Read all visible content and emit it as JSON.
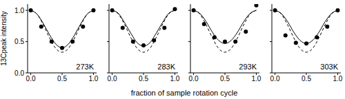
{
  "x_label": "fraction of sample rotation cycle",
  "y_label": "13Cpeak intensity",
  "chart_data": [
    {
      "type": "line",
      "title": "273K",
      "xlim": [
        -0.05,
        1.05
      ],
      "ylim": [
        0,
        1.1
      ],
      "xticks": [
        {
          "value": 0,
          "label": "0.0"
        },
        {
          "value": 0.5,
          "label": "0.5"
        },
        {
          "value": 1,
          "label": "1.0"
        }
      ],
      "yticks": [
        {
          "value": 0,
          "label": "0.0"
        },
        {
          "value": 0.5,
          "label": "0.5"
        },
        {
          "value": 1,
          "label": "1.0"
        }
      ],
      "series": [
        {
          "type": "scatter",
          "marker": "circle",
          "color": "#000000",
          "x": [
            0,
            0.167,
            0.333,
            0.5,
            0.667,
            0.833,
            1
          ],
          "values": [
            1.0,
            0.74,
            0.5,
            0.4,
            0.5,
            0.74,
            1.0
          ]
        },
        {
          "type": "line",
          "line_style": "solid",
          "color": "#000000",
          "x": [
            0,
            0.1,
            0.2,
            0.3,
            0.4,
            0.5,
            0.6,
            0.7,
            0.8,
            0.9,
            1
          ],
          "values": [
            1,
            0.94,
            0.79,
            0.61,
            0.46,
            0.4,
            0.46,
            0.61,
            0.79,
            0.94,
            1
          ]
        },
        {
          "type": "line",
          "line_style": "dashed",
          "color": "#000000",
          "x": [
            0,
            0.1,
            0.2,
            0.3,
            0.4,
            0.5,
            0.6,
            0.7,
            0.8,
            0.9,
            1
          ],
          "values": [
            1,
            0.94,
            0.77,
            0.56,
            0.39,
            0.33,
            0.39,
            0.56,
            0.77,
            0.94,
            1
          ]
        }
      ]
    },
    {
      "type": "line",
      "title": "283K",
      "xlim": [
        -0.05,
        1.05
      ],
      "ylim": [
        0,
        1.1
      ],
      "tick_labels": "x",
      "xticks": [
        {
          "value": 0,
          "label": "0.0"
        },
        {
          "value": 0.5,
          "label": "0.5"
        },
        {
          "value": 1,
          "label": "1.0"
        }
      ],
      "yticks": [
        0,
        0.5,
        1
      ],
      "series": [
        {
          "type": "scatter",
          "marker": "circle",
          "color": "#000000",
          "x": [
            0,
            0.167,
            0.333,
            0.5,
            0.667,
            0.833,
            1
          ],
          "values": [
            1.0,
            0.72,
            0.5,
            0.44,
            0.52,
            0.72,
            1.02
          ]
        },
        {
          "type": "line",
          "line_style": "solid",
          "color": "#000000",
          "x": [
            0,
            0.1,
            0.2,
            0.3,
            0.4,
            0.5,
            0.6,
            0.7,
            0.8,
            0.9,
            1
          ],
          "values": [
            1,
            0.95,
            0.8,
            0.63,
            0.48,
            0.43,
            0.48,
            0.63,
            0.8,
            0.95,
            1
          ]
        },
        {
          "type": "line",
          "line_style": "dashed",
          "color": "#000000",
          "x": [
            0,
            0.1,
            0.2,
            0.3,
            0.4,
            0.5,
            0.6,
            0.7,
            0.8,
            0.9,
            1
          ],
          "values": [
            1,
            0.94,
            0.77,
            0.56,
            0.39,
            0.33,
            0.39,
            0.56,
            0.77,
            0.94,
            1
          ]
        }
      ]
    },
    {
      "type": "line",
      "title": "293K",
      "xlim": [
        -0.05,
        1.05
      ],
      "ylim": [
        0,
        1.1
      ],
      "tick_labels": "x",
      "xticks": [
        {
          "value": 0,
          "label": "0.0"
        },
        {
          "value": 0.5,
          "label": "0.5"
        },
        {
          "value": 1,
          "label": "1.0"
        }
      ],
      "yticks": [
        0,
        0.5,
        1
      ],
      "series": [
        {
          "type": "scatter",
          "marker": "circle",
          "color": "#000000",
          "x": [
            0,
            0.167,
            0.333,
            0.5,
            0.667,
            0.833,
            1
          ],
          "values": [
            1.0,
            0.78,
            0.57,
            0.5,
            0.5,
            0.66,
            1.08
          ]
        },
        {
          "type": "line",
          "line_style": "solid",
          "color": "#000000",
          "x": [
            0,
            0.1,
            0.2,
            0.3,
            0.4,
            0.5,
            0.6,
            0.7,
            0.8,
            0.9,
            1
          ],
          "values": [
            1,
            0.95,
            0.82,
            0.65,
            0.52,
            0.47,
            0.52,
            0.65,
            0.82,
            0.95,
            1
          ]
        },
        {
          "type": "line",
          "line_style": "dashed",
          "color": "#000000",
          "x": [
            0,
            0.1,
            0.2,
            0.3,
            0.4,
            0.5,
            0.6,
            0.7,
            0.8,
            0.9,
            1
          ],
          "values": [
            1,
            0.94,
            0.77,
            0.56,
            0.39,
            0.33,
            0.39,
            0.56,
            0.77,
            0.94,
            1
          ]
        }
      ]
    },
    {
      "type": "line",
      "title": "303K",
      "xlim": [
        -0.05,
        1.05
      ],
      "ylim": [
        0,
        1.1
      ],
      "tick_labels": "x",
      "xticks": [
        {
          "value": 0,
          "label": "0.0"
        },
        {
          "value": 0.5,
          "label": "0.5"
        },
        {
          "value": 1,
          "label": "1.0"
        }
      ],
      "yticks": [
        0,
        0.5,
        1
      ],
      "series": [
        {
          "type": "scatter",
          "marker": "circle",
          "color": "#000000",
          "x": [
            0,
            0.167,
            0.333,
            0.5,
            0.667,
            0.833,
            1
          ],
          "values": [
            1.0,
            0.6,
            0.48,
            0.47,
            0.57,
            0.74,
            1.0
          ]
        },
        {
          "type": "line",
          "line_style": "solid",
          "color": "#000000",
          "x": [
            0,
            0.1,
            0.2,
            0.3,
            0.4,
            0.5,
            0.6,
            0.7,
            0.8,
            0.9,
            1
          ],
          "values": [
            1,
            0.95,
            0.82,
            0.65,
            0.52,
            0.47,
            0.52,
            0.65,
            0.82,
            0.95,
            1
          ]
        },
        {
          "type": "line",
          "line_style": "dashed",
          "color": "#000000",
          "x": [
            0,
            0.1,
            0.2,
            0.3,
            0.4,
            0.5,
            0.6,
            0.7,
            0.8,
            0.9,
            1
          ],
          "values": [
            1,
            0.94,
            0.77,
            0.56,
            0.39,
            0.33,
            0.39,
            0.56,
            0.77,
            0.94,
            1
          ]
        }
      ]
    }
  ]
}
